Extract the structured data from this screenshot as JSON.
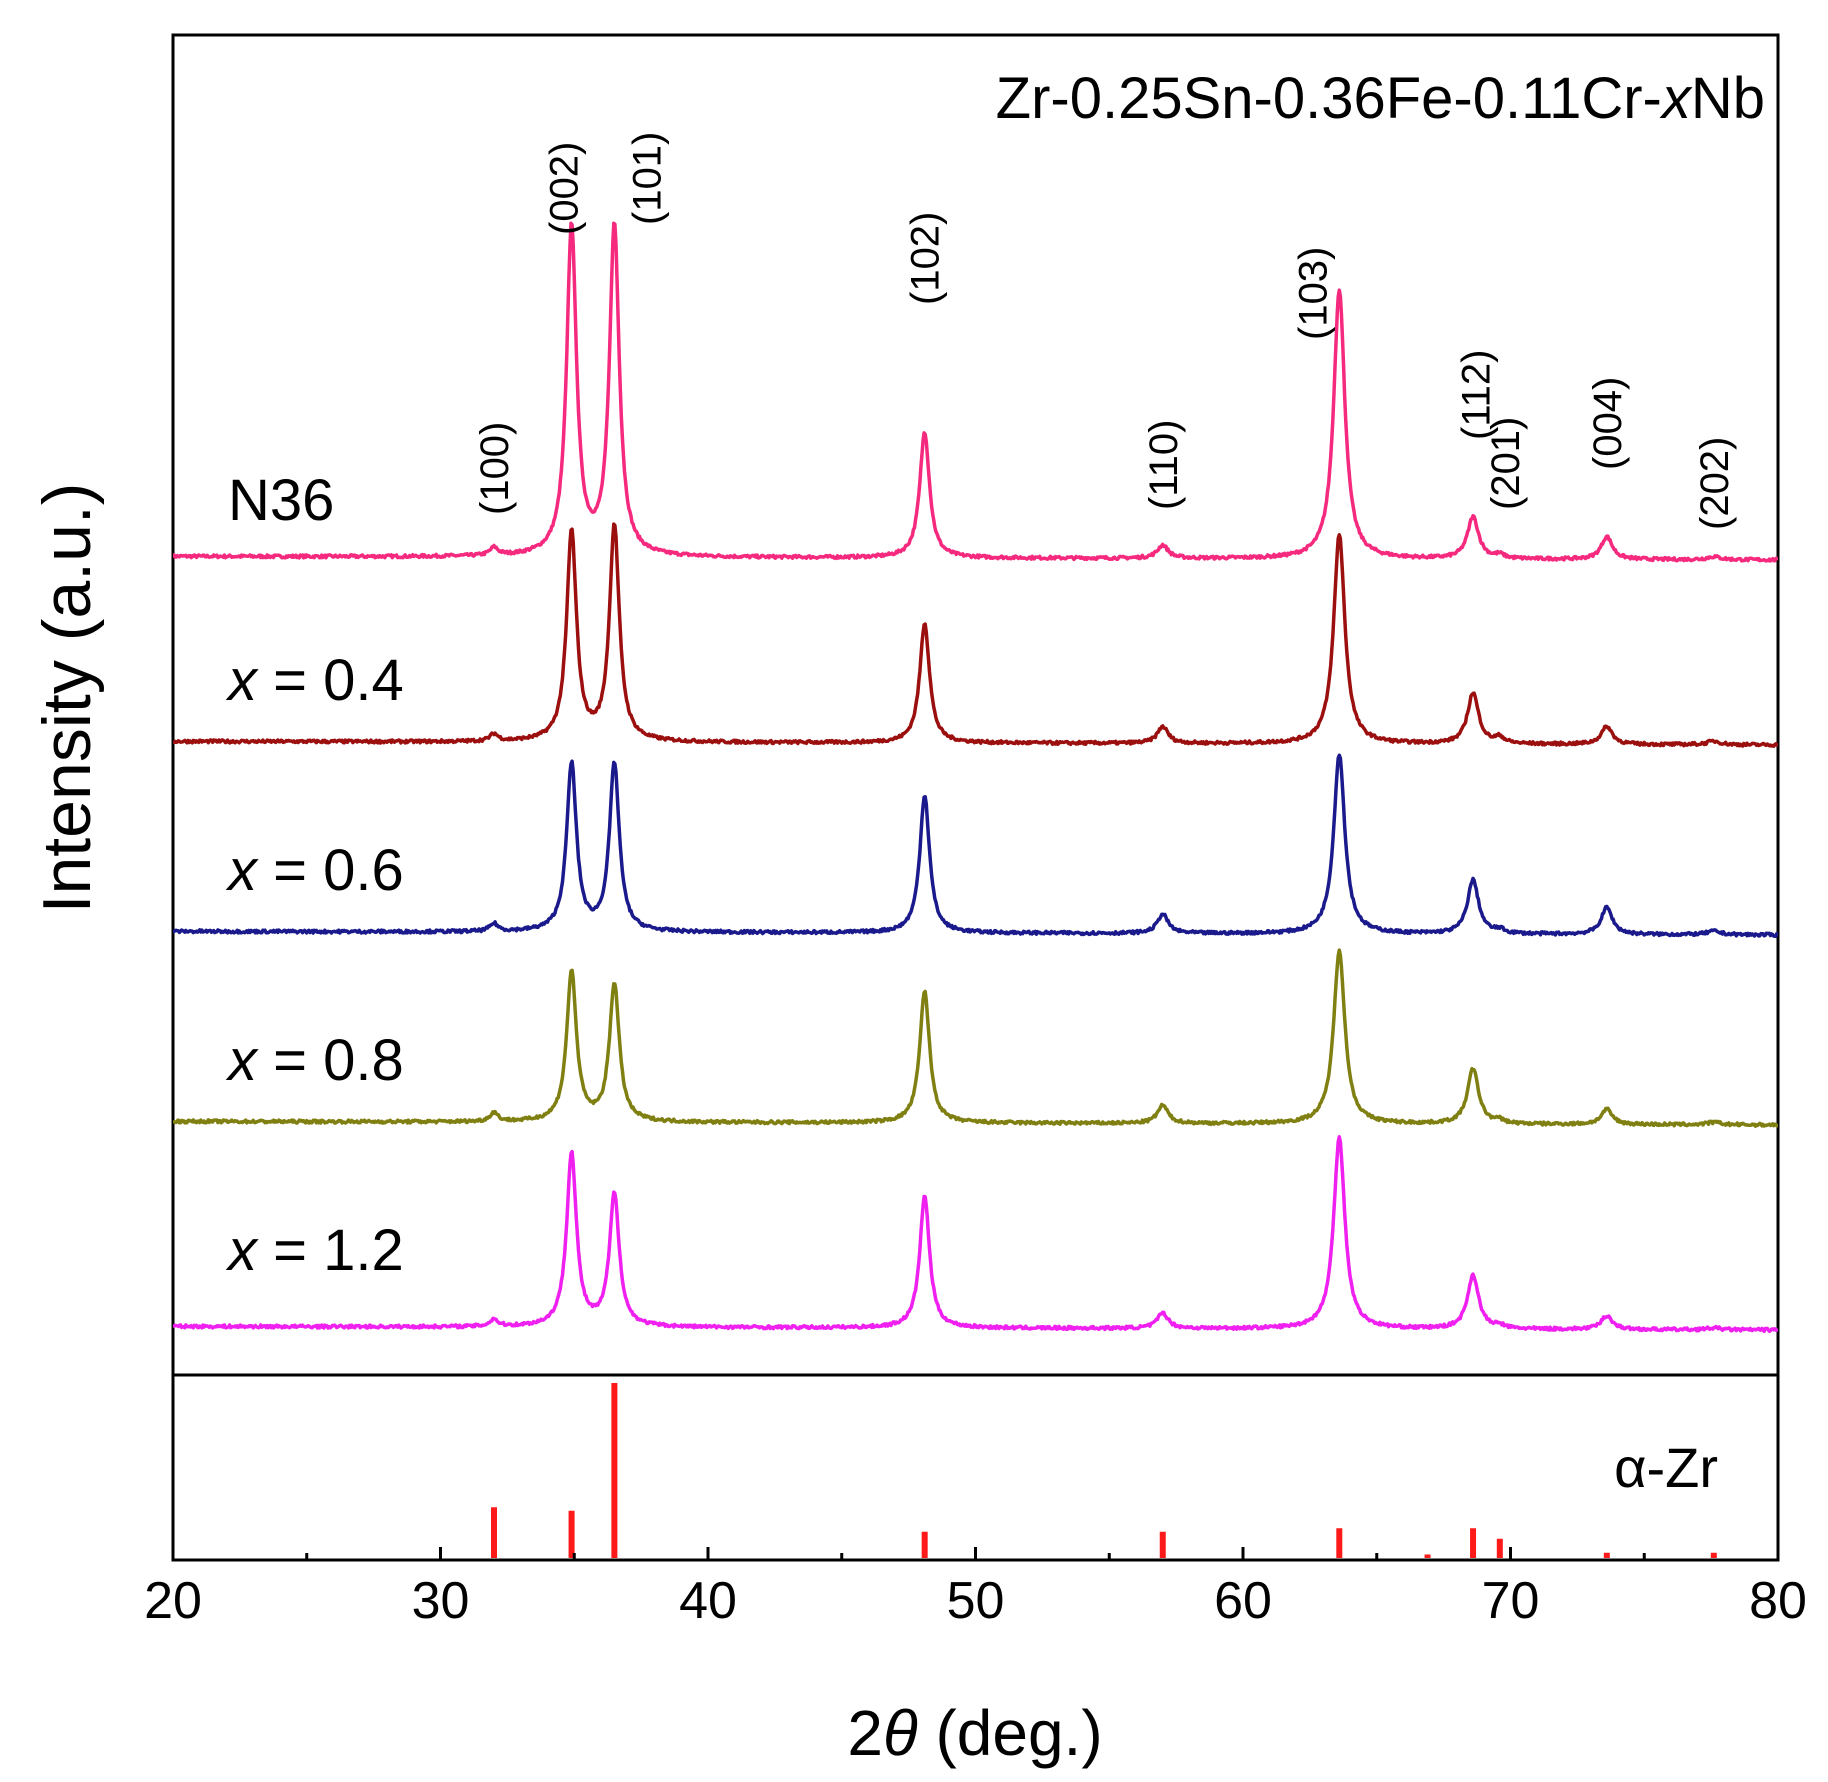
{
  "chart_data": {
    "type": "line",
    "title": "Zr-0.25Sn-0.36Fe-0.11Cr-",
    "title_var": "x",
    "title_tail": "Nb",
    "xlabel_prefix": "2",
    "xlabel_symbol": "θ",
    "xlabel_suffix": " (deg.)",
    "ylabel": "Intensity (a.u.)",
    "xlim": [
      20,
      80
    ],
    "x_ticks": [
      "20",
      "30",
      "40",
      "50",
      "60",
      "70",
      "80"
    ],
    "x_minor_ticks": [
      25,
      35,
      45,
      55,
      65,
      75
    ],
    "grid": false,
    "peaks": [
      {
        "hkl": "(100)",
        "pos": 32.0
      },
      {
        "hkl": "(002)",
        "pos": 34.9
      },
      {
        "hkl": "(101)",
        "pos": 36.5
      },
      {
        "hkl": "(102)",
        "pos": 48.1
      },
      {
        "hkl": "(110)",
        "pos": 57.0
      },
      {
        "hkl": "(103)",
        "pos": 63.6
      },
      {
        "hkl": "(112)",
        "pos": 68.6
      },
      {
        "hkl": "(201)",
        "pos": 69.6
      },
      {
        "hkl": "(004)",
        "pos": 73.6
      },
      {
        "hkl": "(202)",
        "pos": 77.6
      }
    ],
    "series": [
      {
        "name": "N36",
        "label_var": "",
        "label_rest": "N36",
        "color": "#f5297e",
        "baseline": 0.0,
        "peak_heights": [
          0.13,
          5.5,
          5.5,
          2.1,
          0.22,
          4.5,
          0.7,
          0.06,
          0.38,
          0.05
        ]
      },
      {
        "name": "x = 0.4",
        "label_var": "x",
        "label_rest": " = 0.4",
        "color": "#9b0f0f",
        "baseline": 0.0,
        "peak_heights": [
          0.12,
          3.5,
          3.6,
          2.0,
          0.28,
          3.5,
          0.85,
          0.1,
          0.3,
          0.06
        ]
      },
      {
        "name": "x = 0.6",
        "label_var": "x",
        "label_rest": " = 0.6",
        "color": "#1a1a8c",
        "baseline": 0.0,
        "peak_heights": [
          0.13,
          2.8,
          2.8,
          2.3,
          0.32,
          3.0,
          0.9,
          0.06,
          0.45,
          0.06
        ]
      },
      {
        "name": "x = 0.8",
        "label_var": "x",
        "label_rest": " = 0.8",
        "color": "#7f7f12",
        "baseline": 0.0,
        "peak_heights": [
          0.15,
          2.5,
          2.3,
          2.2,
          0.3,
          2.9,
          0.92,
          0.05,
          0.25,
          0.04
        ]
      },
      {
        "name": "x = 1.2",
        "label_var": "x",
        "label_rest": " = 1.2",
        "color": "#f020f0",
        "baseline": 0.0,
        "peak_heights": [
          0.12,
          2.9,
          2.2,
          2.2,
          0.26,
          3.2,
          0.9,
          0.05,
          0.23,
          0.03
        ]
      }
    ],
    "reference": {
      "label": "α-Zr",
      "color": "#ff1a1a",
      "positions": [
        32.0,
        34.9,
        36.5,
        48.1,
        57.0,
        63.6,
        66.9,
        68.6,
        69.6,
        73.6,
        77.6
      ],
      "intensities": [
        0.29,
        0.27,
        1.0,
        0.15,
        0.15,
        0.17,
        0.02,
        0.17,
        0.11,
        0.03,
        0.03
      ]
    }
  }
}
